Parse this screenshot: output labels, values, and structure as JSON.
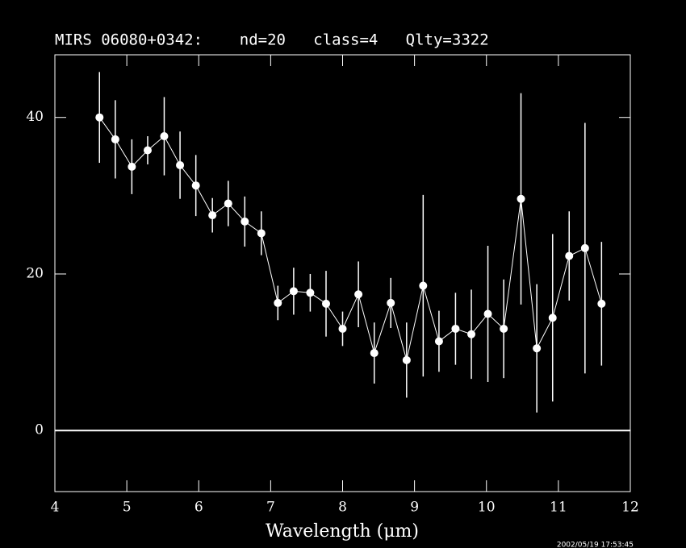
{
  "chart_data": {
    "type": "line",
    "title": "MIRS 06080+0342:    nd=20   class=4   Qlty=3322",
    "x_label": "Wavelength (μm)",
    "timestamp": "2002/05/19 17:53:45",
    "color": "#ffffff",
    "x": [
      4.62,
      4.84,
      5.07,
      5.29,
      5.52,
      5.74,
      5.96,
      6.19,
      6.41,
      6.64,
      6.87,
      7.1,
      7.32,
      7.55,
      7.77,
      8.0,
      8.22,
      8.44,
      8.67,
      8.89,
      9.12,
      9.34,
      9.57,
      9.79,
      10.02,
      10.24,
      10.48,
      10.7,
      10.92,
      11.15,
      11.37,
      11.6
    ],
    "values": [
      40.0,
      37.2,
      33.7,
      35.8,
      37.6,
      33.9,
      31.3,
      27.5,
      29.0,
      26.7,
      25.2,
      16.3,
      17.8,
      17.6,
      16.2,
      13.0,
      17.4,
      9.9,
      16.3,
      9.0,
      18.5,
      11.4,
      13.0,
      12.3,
      14.9,
      13.0,
      29.6,
      10.5,
      14.4,
      22.3,
      23.3,
      16.2
    ],
    "errors": [
      5.8,
      5.0,
      3.5,
      1.8,
      5.0,
      4.3,
      3.9,
      2.2,
      2.9,
      3.2,
      2.8,
      2.2,
      3.0,
      2.4,
      4.2,
      2.2,
      4.2,
      3.9,
      3.2,
      4.8,
      11.6,
      3.9,
      4.6,
      5.7,
      8.7,
      6.3,
      13.5,
      8.2,
      10.7,
      5.7,
      16.0,
      7.9
    ],
    "xlim": [
      4,
      12
    ],
    "xticks": [
      4,
      5,
      6,
      7,
      8,
      9,
      10,
      11,
      12
    ],
    "ylim": [
      -7.8,
      48
    ],
    "yticks": [
      0,
      20,
      40
    ],
    "zero_line": true
  }
}
